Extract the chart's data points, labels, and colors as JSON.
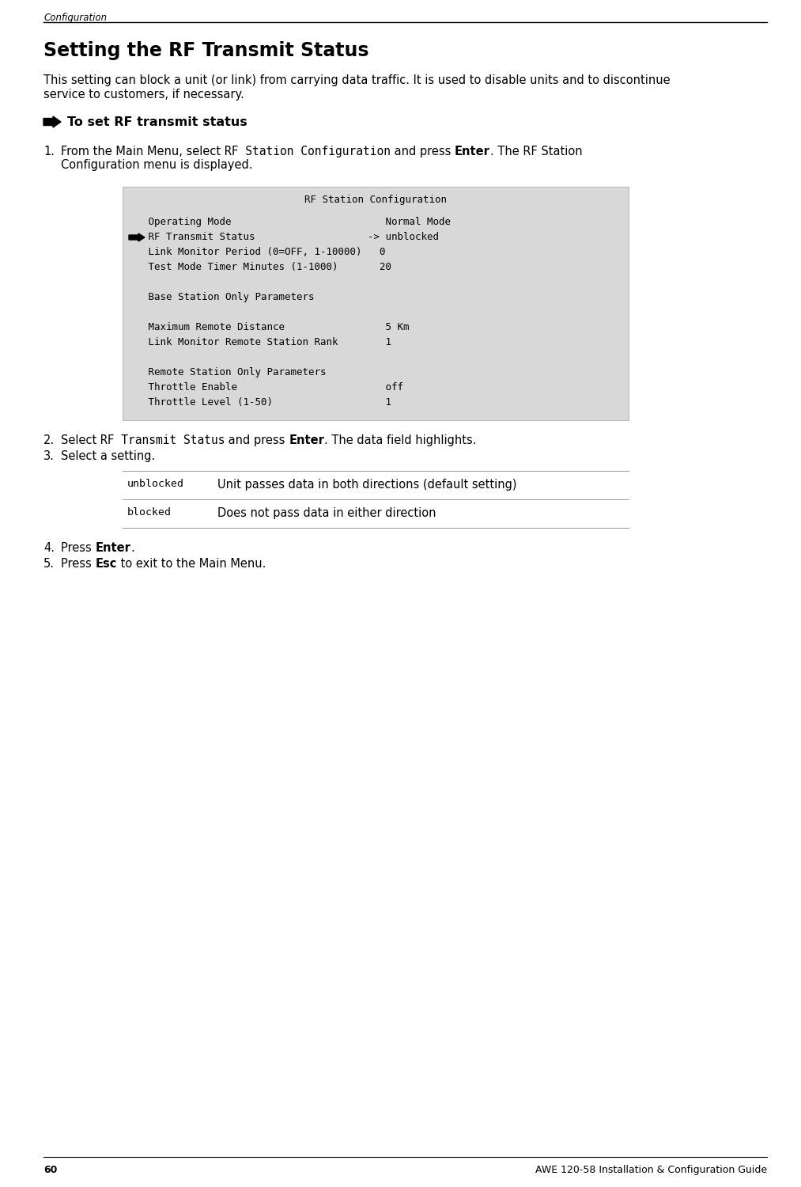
{
  "page_bg": "#ffffff",
  "header_text": "Configuration",
  "footer_page_num": "60",
  "footer_right": "AWE 120-58 Installation & Configuration Guide",
  "title": "Setting the RF Transmit Status",
  "intro_line1": "This setting can block a unit (or link) from carrying data traffic. It is used to disable units and to discontinue",
  "intro_line2": "service to customers, if necessary.",
  "bullet_arrow_label": "To set RF transmit status",
  "terminal_box": {
    "bg": "#d8d8d8",
    "title": "   RF Station Configuration",
    "lines": [
      {
        "text": "   Operating Mode                          Normal Mode",
        "arrow": false
      },
      {
        "text": "   RF Transmit Status                   -> unblocked",
        "arrow": true
      },
      {
        "text": "   Link Monitor Period (0=OFF, 1-10000)   0",
        "arrow": false
      },
      {
        "text": "   Test Mode Timer Minutes (1-1000)       20",
        "arrow": false
      },
      {
        "text": "",
        "arrow": false
      },
      {
        "text": "   Base Station Only Parameters",
        "arrow": false
      },
      {
        "text": "",
        "arrow": false
      },
      {
        "text": "   Maximum Remote Distance                 5 Km",
        "arrow": false
      },
      {
        "text": "   Link Monitor Remote Station Rank        1",
        "arrow": false
      },
      {
        "text": "",
        "arrow": false
      },
      {
        "text": "   Remote Station Only Parameters",
        "arrow": false
      },
      {
        "text": "   Throttle Enable                         off",
        "arrow": false
      },
      {
        "text": "   Throttle Level (1-50)                   1",
        "arrow": false
      }
    ]
  },
  "table_rows": [
    {
      "code": "unblocked",
      "desc": "Unit passes data in both directions (default setting)"
    },
    {
      "code": "blocked",
      "desc": "Does not pass data in either direction"
    }
  ],
  "colors": {
    "black": "#000000",
    "table_line": "#999999",
    "terminal_bg": "#d8d8d8",
    "terminal_border": "#bbbbbb"
  },
  "font_sizes": {
    "header": 8.5,
    "title": 17,
    "body": 10.5,
    "bullet_label": 11.5,
    "step_text": 10.5,
    "terminal": 9,
    "table_code": 9.5,
    "table_desc": 10.5,
    "footer": 9
  }
}
